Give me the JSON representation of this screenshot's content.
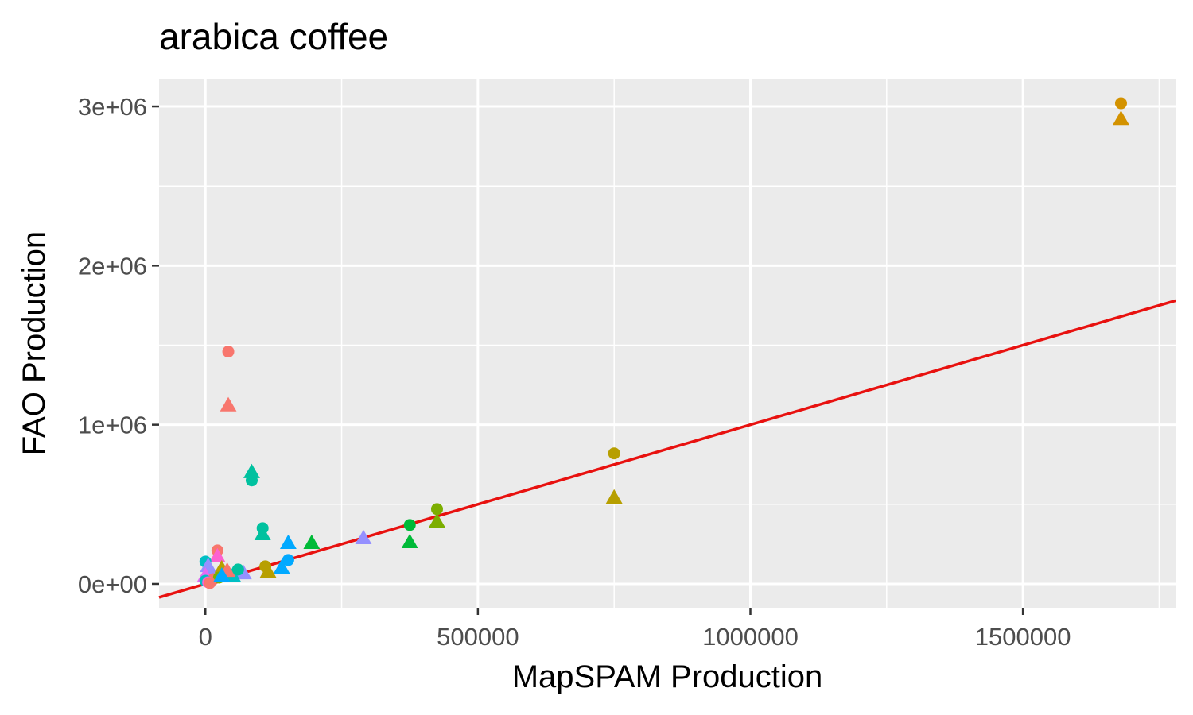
{
  "chart_data": {
    "type": "scatter",
    "title": "arabica coffee",
    "xlabel": "MapSPAM Production",
    "ylabel": "FAO Production",
    "xlim": [
      -85000,
      1780000
    ],
    "ylim": [
      -150000,
      3170000
    ],
    "x_ticks": [
      0,
      500000,
      1000000,
      1500000
    ],
    "x_tick_labels": [
      "0",
      "500000",
      "1000000",
      "1500000"
    ],
    "y_ticks": [
      0,
      1000000,
      2000000,
      3000000
    ],
    "y_tick_labels": [
      "0e+00",
      "1e+06",
      "2e+06",
      "3e+06"
    ],
    "grid": true,
    "legend": "none",
    "colors": {
      "panel_background": "#ebebeb",
      "grid": "#ffffff",
      "tick": "#333333",
      "line": "#e8110f"
    },
    "reference_line": {
      "slope": 1,
      "intercept": 0
    },
    "points": [
      {
        "x": 1680000,
        "y": 3020000,
        "shape": "circle",
        "color": "#d39200"
      },
      {
        "x": 1680000,
        "y": 2920000,
        "shape": "triangle",
        "color": "#d39200"
      },
      {
        "x": 750000,
        "y": 820000,
        "shape": "circle",
        "color": "#b79f00"
      },
      {
        "x": 750000,
        "y": 540000,
        "shape": "triangle",
        "color": "#b79f00"
      },
      {
        "x": 425000,
        "y": 470000,
        "shape": "circle",
        "color": "#7cae00"
      },
      {
        "x": 425000,
        "y": 390000,
        "shape": "triangle",
        "color": "#7cae00"
      },
      {
        "x": 375000,
        "y": 370000,
        "shape": "circle",
        "color": "#00ba38"
      },
      {
        "x": 375000,
        "y": 260000,
        "shape": "triangle",
        "color": "#00ba38"
      },
      {
        "x": 290000,
        "y": 285000,
        "shape": "triangle",
        "color": "#9590ff"
      },
      {
        "x": 195000,
        "y": 255000,
        "shape": "triangle",
        "color": "#00ba38"
      },
      {
        "x": 152000,
        "y": 255000,
        "shape": "triangle",
        "color": "#00a9ff"
      },
      {
        "x": 152000,
        "y": 150000,
        "shape": "circle",
        "color": "#00a9ff"
      },
      {
        "x": 140000,
        "y": 100000,
        "shape": "triangle",
        "color": "#00a9ff"
      },
      {
        "x": 105000,
        "y": 350000,
        "shape": "circle",
        "color": "#00c19f"
      },
      {
        "x": 105000,
        "y": 310000,
        "shape": "triangle",
        "color": "#00c19f"
      },
      {
        "x": 85000,
        "y": 700000,
        "shape": "triangle",
        "color": "#00c19f"
      },
      {
        "x": 85000,
        "y": 650000,
        "shape": "circle",
        "color": "#00c19f"
      },
      {
        "x": 42000,
        "y": 1460000,
        "shape": "circle",
        "color": "#f8766d"
      },
      {
        "x": 42000,
        "y": 1120000,
        "shape": "triangle",
        "color": "#f8766d"
      },
      {
        "x": 110000,
        "y": 110000,
        "shape": "circle",
        "color": "#b79f00"
      },
      {
        "x": 115000,
        "y": 75000,
        "shape": "triangle",
        "color": "#b79f00"
      },
      {
        "x": 70000,
        "y": 65000,
        "shape": "triangle",
        "color": "#9590ff"
      },
      {
        "x": 50000,
        "y": 50000,
        "shape": "triangle",
        "color": "#00bfc4"
      },
      {
        "x": 22000,
        "y": 210000,
        "shape": "circle",
        "color": "#f8766d"
      },
      {
        "x": 22000,
        "y": 170000,
        "shape": "triangle",
        "color": "#fd61d1"
      },
      {
        "x": 0,
        "y": 140000,
        "shape": "circle",
        "color": "#00bfc4"
      },
      {
        "x": 5000,
        "y": 110000,
        "shape": "triangle",
        "color": "#9590ff"
      },
      {
        "x": 30000,
        "y": 95000,
        "shape": "triangle",
        "color": "#b79f00"
      },
      {
        "x": 40000,
        "y": 80000,
        "shape": "triangle",
        "color": "#f8766d"
      },
      {
        "x": 10000,
        "y": 60000,
        "shape": "triangle",
        "color": "#9590ff"
      },
      {
        "x": 0,
        "y": 50000,
        "shape": "triangle",
        "color": "#e76bf3"
      },
      {
        "x": 15000,
        "y": 30000,
        "shape": "circle",
        "color": "#f8766d"
      },
      {
        "x": 0,
        "y": 20000,
        "shape": "circle",
        "color": "#00bfc4"
      },
      {
        "x": 25000,
        "y": 40000,
        "shape": "circle",
        "color": "#7cae00"
      },
      {
        "x": 5000,
        "y": 10000,
        "shape": "circle",
        "color": "#fd61d1"
      },
      {
        "x": 8000,
        "y": 5000,
        "shape": "circle",
        "color": "#f8766d"
      },
      {
        "x": 30000,
        "y": 50000,
        "shape": "triangle",
        "color": "#00a9ff"
      },
      {
        "x": 60000,
        "y": 90000,
        "shape": "circle",
        "color": "#00c19f"
      }
    ]
  }
}
